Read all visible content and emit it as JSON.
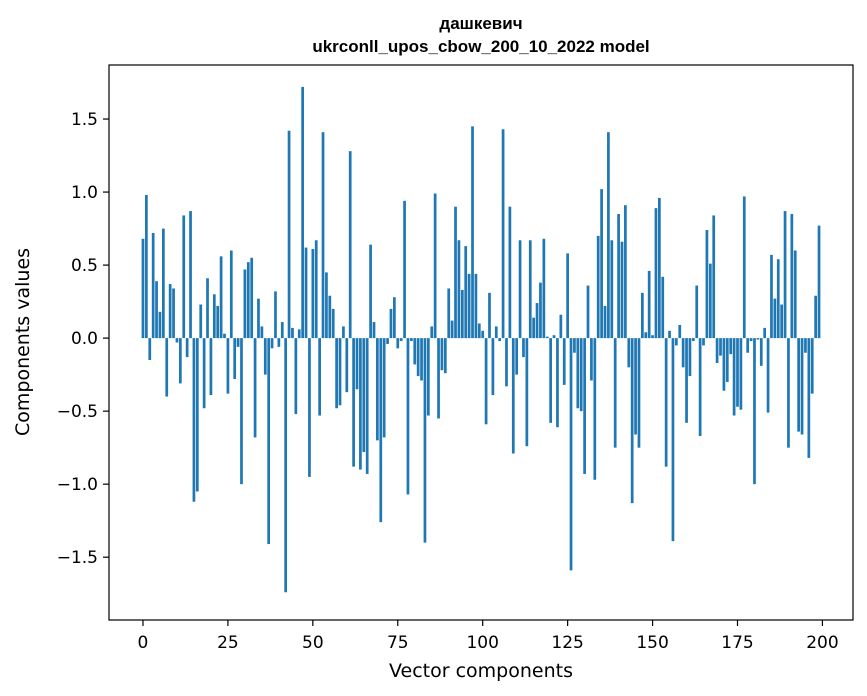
{
  "colors": {
    "bar": "#1f77b4",
    "axis": "#000000",
    "background": "#ffffff"
  },
  "chart_data": {
    "type": "bar",
    "title": "дашкевич",
    "subtitle": "ukrconll_upos_cbow_200_10_2022 model",
    "xlabel": "Vector components",
    "ylabel": "Components values",
    "xlim": [
      -10,
      209
    ],
    "ylim": [
      -1.93,
      1.87
    ],
    "xticks": [
      0,
      25,
      50,
      75,
      100,
      125,
      150,
      175,
      200
    ],
    "yticks": [
      -1.5,
      -1.0,
      -0.5,
      0.0,
      0.5,
      1.0,
      1.5
    ],
    "ytick_labels": [
      "−1.5",
      "−1.0",
      "−0.5",
      "0.0",
      "0.5",
      "1.0",
      "1.5"
    ],
    "x": [
      0,
      1,
      2,
      3,
      4,
      5,
      6,
      7,
      8,
      9,
      10,
      11,
      12,
      13,
      14,
      15,
      16,
      17,
      18,
      19,
      20,
      21,
      22,
      23,
      24,
      25,
      26,
      27,
      28,
      29,
      30,
      31,
      32,
      33,
      34,
      35,
      36,
      37,
      38,
      39,
      40,
      41,
      42,
      43,
      44,
      45,
      46,
      47,
      48,
      49,
      50,
      51,
      52,
      53,
      54,
      55,
      56,
      57,
      58,
      59,
      60,
      61,
      62,
      63,
      64,
      65,
      66,
      67,
      68,
      69,
      70,
      71,
      72,
      73,
      74,
      75,
      76,
      77,
      78,
      79,
      80,
      81,
      82,
      83,
      84,
      85,
      86,
      87,
      88,
      89,
      90,
      91,
      92,
      93,
      94,
      95,
      96,
      97,
      98,
      99,
      100,
      101,
      102,
      103,
      104,
      105,
      106,
      107,
      108,
      109,
      110,
      111,
      112,
      113,
      114,
      115,
      116,
      117,
      118,
      119,
      120,
      121,
      122,
      123,
      124,
      125,
      126,
      127,
      128,
      129,
      130,
      131,
      132,
      133,
      134,
      135,
      136,
      137,
      138,
      139,
      140,
      141,
      142,
      143,
      144,
      145,
      146,
      147,
      148,
      149,
      150,
      151,
      152,
      153,
      154,
      155,
      156,
      157,
      158,
      159,
      160,
      161,
      162,
      163,
      164,
      165,
      166,
      167,
      168,
      169,
      170,
      171,
      172,
      173,
      174,
      175,
      176,
      177,
      178,
      179,
      180,
      181,
      182,
      183,
      184,
      185,
      186,
      187,
      188,
      189,
      190,
      191,
      192,
      193,
      194,
      195,
      196,
      197,
      198,
      199
    ],
    "values": [
      0.68,
      0.98,
      -0.15,
      0.72,
      0.39,
      0.18,
      0.75,
      -0.4,
      0.37,
      0.34,
      -0.03,
      -0.31,
      0.84,
      -0.13,
      0.87,
      -1.12,
      -1.05,
      0.23,
      -0.48,
      0.41,
      -0.39,
      0.3,
      0.22,
      0.56,
      0.03,
      -0.38,
      0.6,
      -0.28,
      -0.06,
      -1.0,
      0.47,
      0.52,
      0.55,
      -0.68,
      0.27,
      0.08,
      -0.25,
      -1.41,
      -0.07,
      0.32,
      -0.06,
      0.11,
      -1.74,
      1.42,
      0.07,
      -0.52,
      0.06,
      1.72,
      0.62,
      -0.95,
      0.61,
      0.67,
      -0.53,
      1.41,
      0.45,
      0.29,
      0.2,
      -0.48,
      -0.46,
      0.08,
      -0.37,
      1.28,
      -0.88,
      -0.35,
      -0.9,
      -0.78,
      -0.93,
      0.64,
      0.11,
      -0.7,
      -1.26,
      -0.68,
      -0.04,
      0.2,
      0.28,
      -0.07,
      -0.02,
      0.94,
      -1.07,
      -0.02,
      -0.18,
      -0.26,
      -0.29,
      -1.4,
      -0.53,
      0.08,
      0.99,
      -0.55,
      -0.22,
      -0.24,
      0.34,
      0.12,
      0.9,
      0.67,
      0.33,
      0.63,
      0.44,
      1.45,
      0.44,
      0.1,
      0.05,
      -0.59,
      0.31,
      -0.39,
      0.08,
      -0.02,
      1.43,
      -0.33,
      0.9,
      -0.79,
      -0.25,
      0.67,
      -0.13,
      -0.74,
      0.67,
      0.14,
      0.24,
      0.38,
      0.68,
      0.01,
      -0.58,
      0.02,
      -0.61,
      0.16,
      -0.32,
      0.58,
      -1.59,
      -0.1,
      -0.48,
      -0.5,
      -0.93,
      0.36,
      -0.29,
      -0.97,
      0.7,
      1.02,
      0.22,
      1.41,
      0.67,
      -0.75,
      0.85,
      0.66,
      0.91,
      -0.2,
      -1.13,
      -0.66,
      -0.75,
      0.31,
      0.04,
      0.46,
      0.02,
      0.89,
      0.96,
      0.42,
      -0.88,
      0.05,
      -1.39,
      -0.05,
      0.09,
      -0.2,
      -0.58,
      -0.26,
      -0.02,
      0.36,
      -0.67,
      -0.05,
      0.74,
      0.51,
      0.84,
      -0.17,
      -0.12,
      -0.36,
      -0.3,
      -0.11,
      -0.53,
      -0.47,
      -0.49,
      0.97,
      -0.1,
      -0.02,
      -1.0,
      -0.01,
      -0.19,
      0.07,
      -0.51,
      0.57,
      0.27,
      0.54,
      0.23,
      0.87,
      -0.75,
      0.85,
      0.6,
      -0.64,
      -0.66,
      -0.1,
      -0.82,
      -0.38,
      0.29,
      0.77
    ]
  }
}
